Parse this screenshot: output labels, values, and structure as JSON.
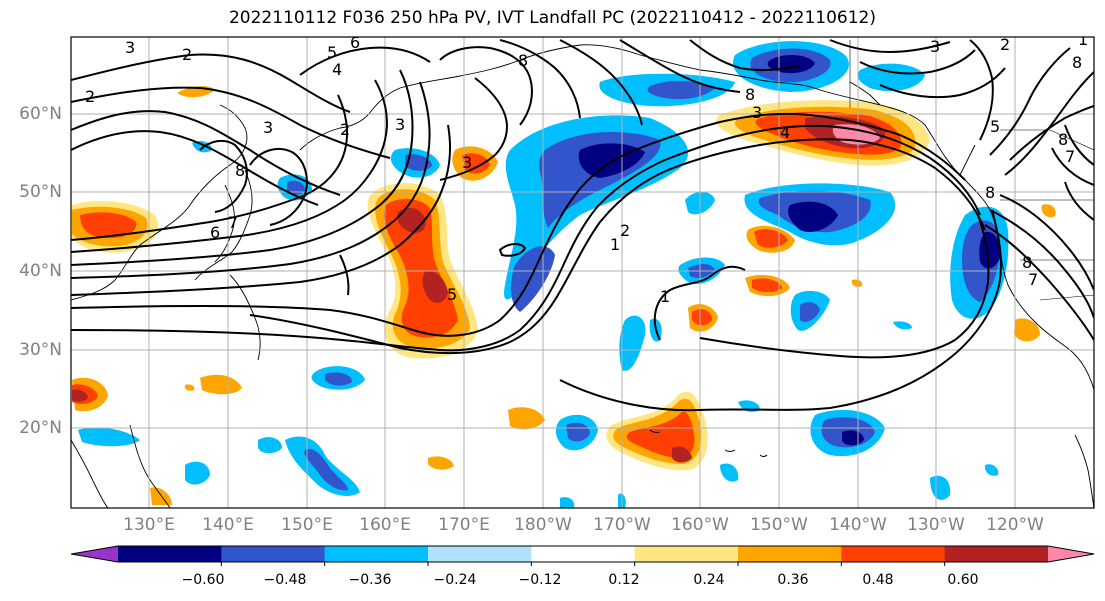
{
  "title": "2022110112 F036 250 hPa PV, IVT Landfall PC (2022110412 - 2022110612)",
  "map": {
    "lat_ticks": [
      "60°N",
      "50°N",
      "40°N",
      "30°N",
      "20°N"
    ],
    "lon_ticks": [
      "130°E",
      "140°E",
      "150°E",
      "160°E",
      "170°E",
      "180°W",
      "170°W",
      "160°W",
      "150°W",
      "140°W",
      "130°W",
      "120°W"
    ],
    "pv_contour_labels": [
      "3",
      "2",
      "5",
      "6",
      "4",
      "2",
      "3",
      "2",
      "3",
      "8",
      "6",
      "7",
      "3",
      "8",
      "1",
      "1",
      "2",
      "3",
      "4",
      "8",
      "5",
      "8",
      "7",
      "3",
      "8",
      "1",
      "5",
      "2",
      "8",
      "8",
      "7"
    ]
  },
  "colorbar": {
    "colors": [
      "#9933cc",
      "#000080",
      "#3355cc",
      "#00bfff",
      "#b0e2ff",
      "#ffffff",
      "#ffe680",
      "#ffa500",
      "#ff4000",
      "#b22222",
      "#ff88aa"
    ],
    "ticks": [
      "−0.60",
      "−0.48",
      "−0.36",
      "−0.24",
      "−0.12",
      "0.12",
      "0.24",
      "0.36",
      "0.48",
      "0.60"
    ]
  }
}
